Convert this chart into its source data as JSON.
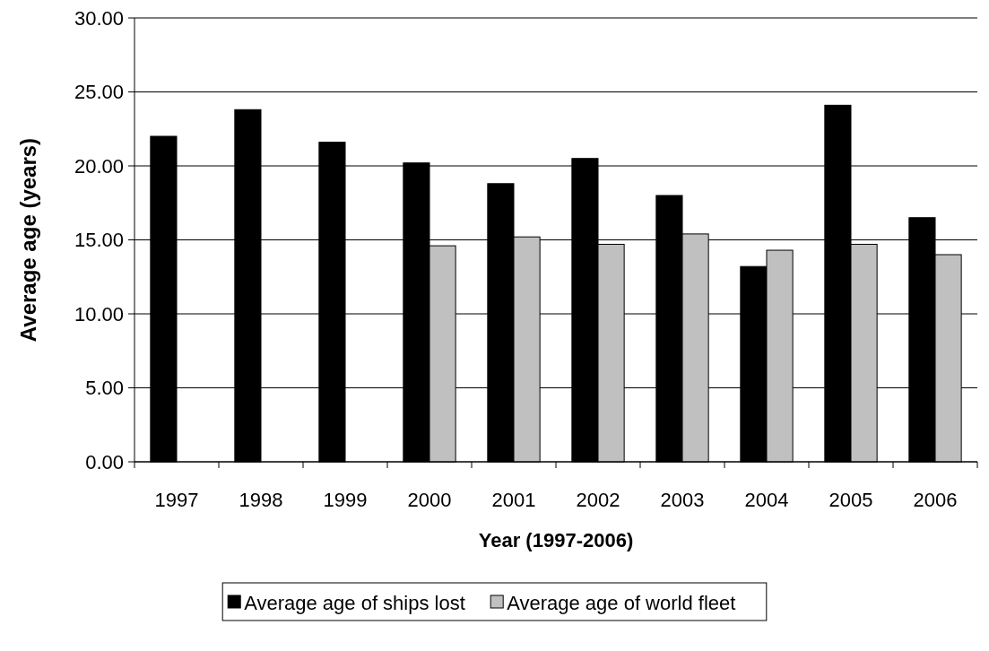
{
  "chart_data": {
    "type": "bar",
    "xlabel": "Year (1997-2006)",
    "ylabel": "Average age (years)",
    "categories": [
      "1997",
      "1998",
      "1999",
      "2000",
      "2001",
      "2002",
      "2003",
      "2004",
      "2005",
      "2006"
    ],
    "series": [
      {
        "name": "Average age of ships lost",
        "color": "#000000",
        "values": [
          22.0,
          23.8,
          21.6,
          20.2,
          18.8,
          20.5,
          18.0,
          13.2,
          24.1,
          16.5
        ]
      },
      {
        "name": "Average age of world fleet",
        "color": "#c0c0c0",
        "values": [
          null,
          null,
          null,
          14.6,
          15.2,
          14.7,
          15.4,
          14.3,
          14.7,
          14.0
        ]
      }
    ],
    "ylim": [
      0,
      30
    ],
    "yticks": [
      {
        "value": 0,
        "label": "0.00"
      },
      {
        "value": 5,
        "label": "5.00"
      },
      {
        "value": 10,
        "label": "10.00"
      },
      {
        "value": 15,
        "label": "15.00"
      },
      {
        "value": 20,
        "label": "20.00"
      },
      {
        "value": 25,
        "label": "25.00"
      },
      {
        "value": 30,
        "label": "30.00"
      }
    ],
    "grid": "y",
    "legend": "bottom"
  }
}
